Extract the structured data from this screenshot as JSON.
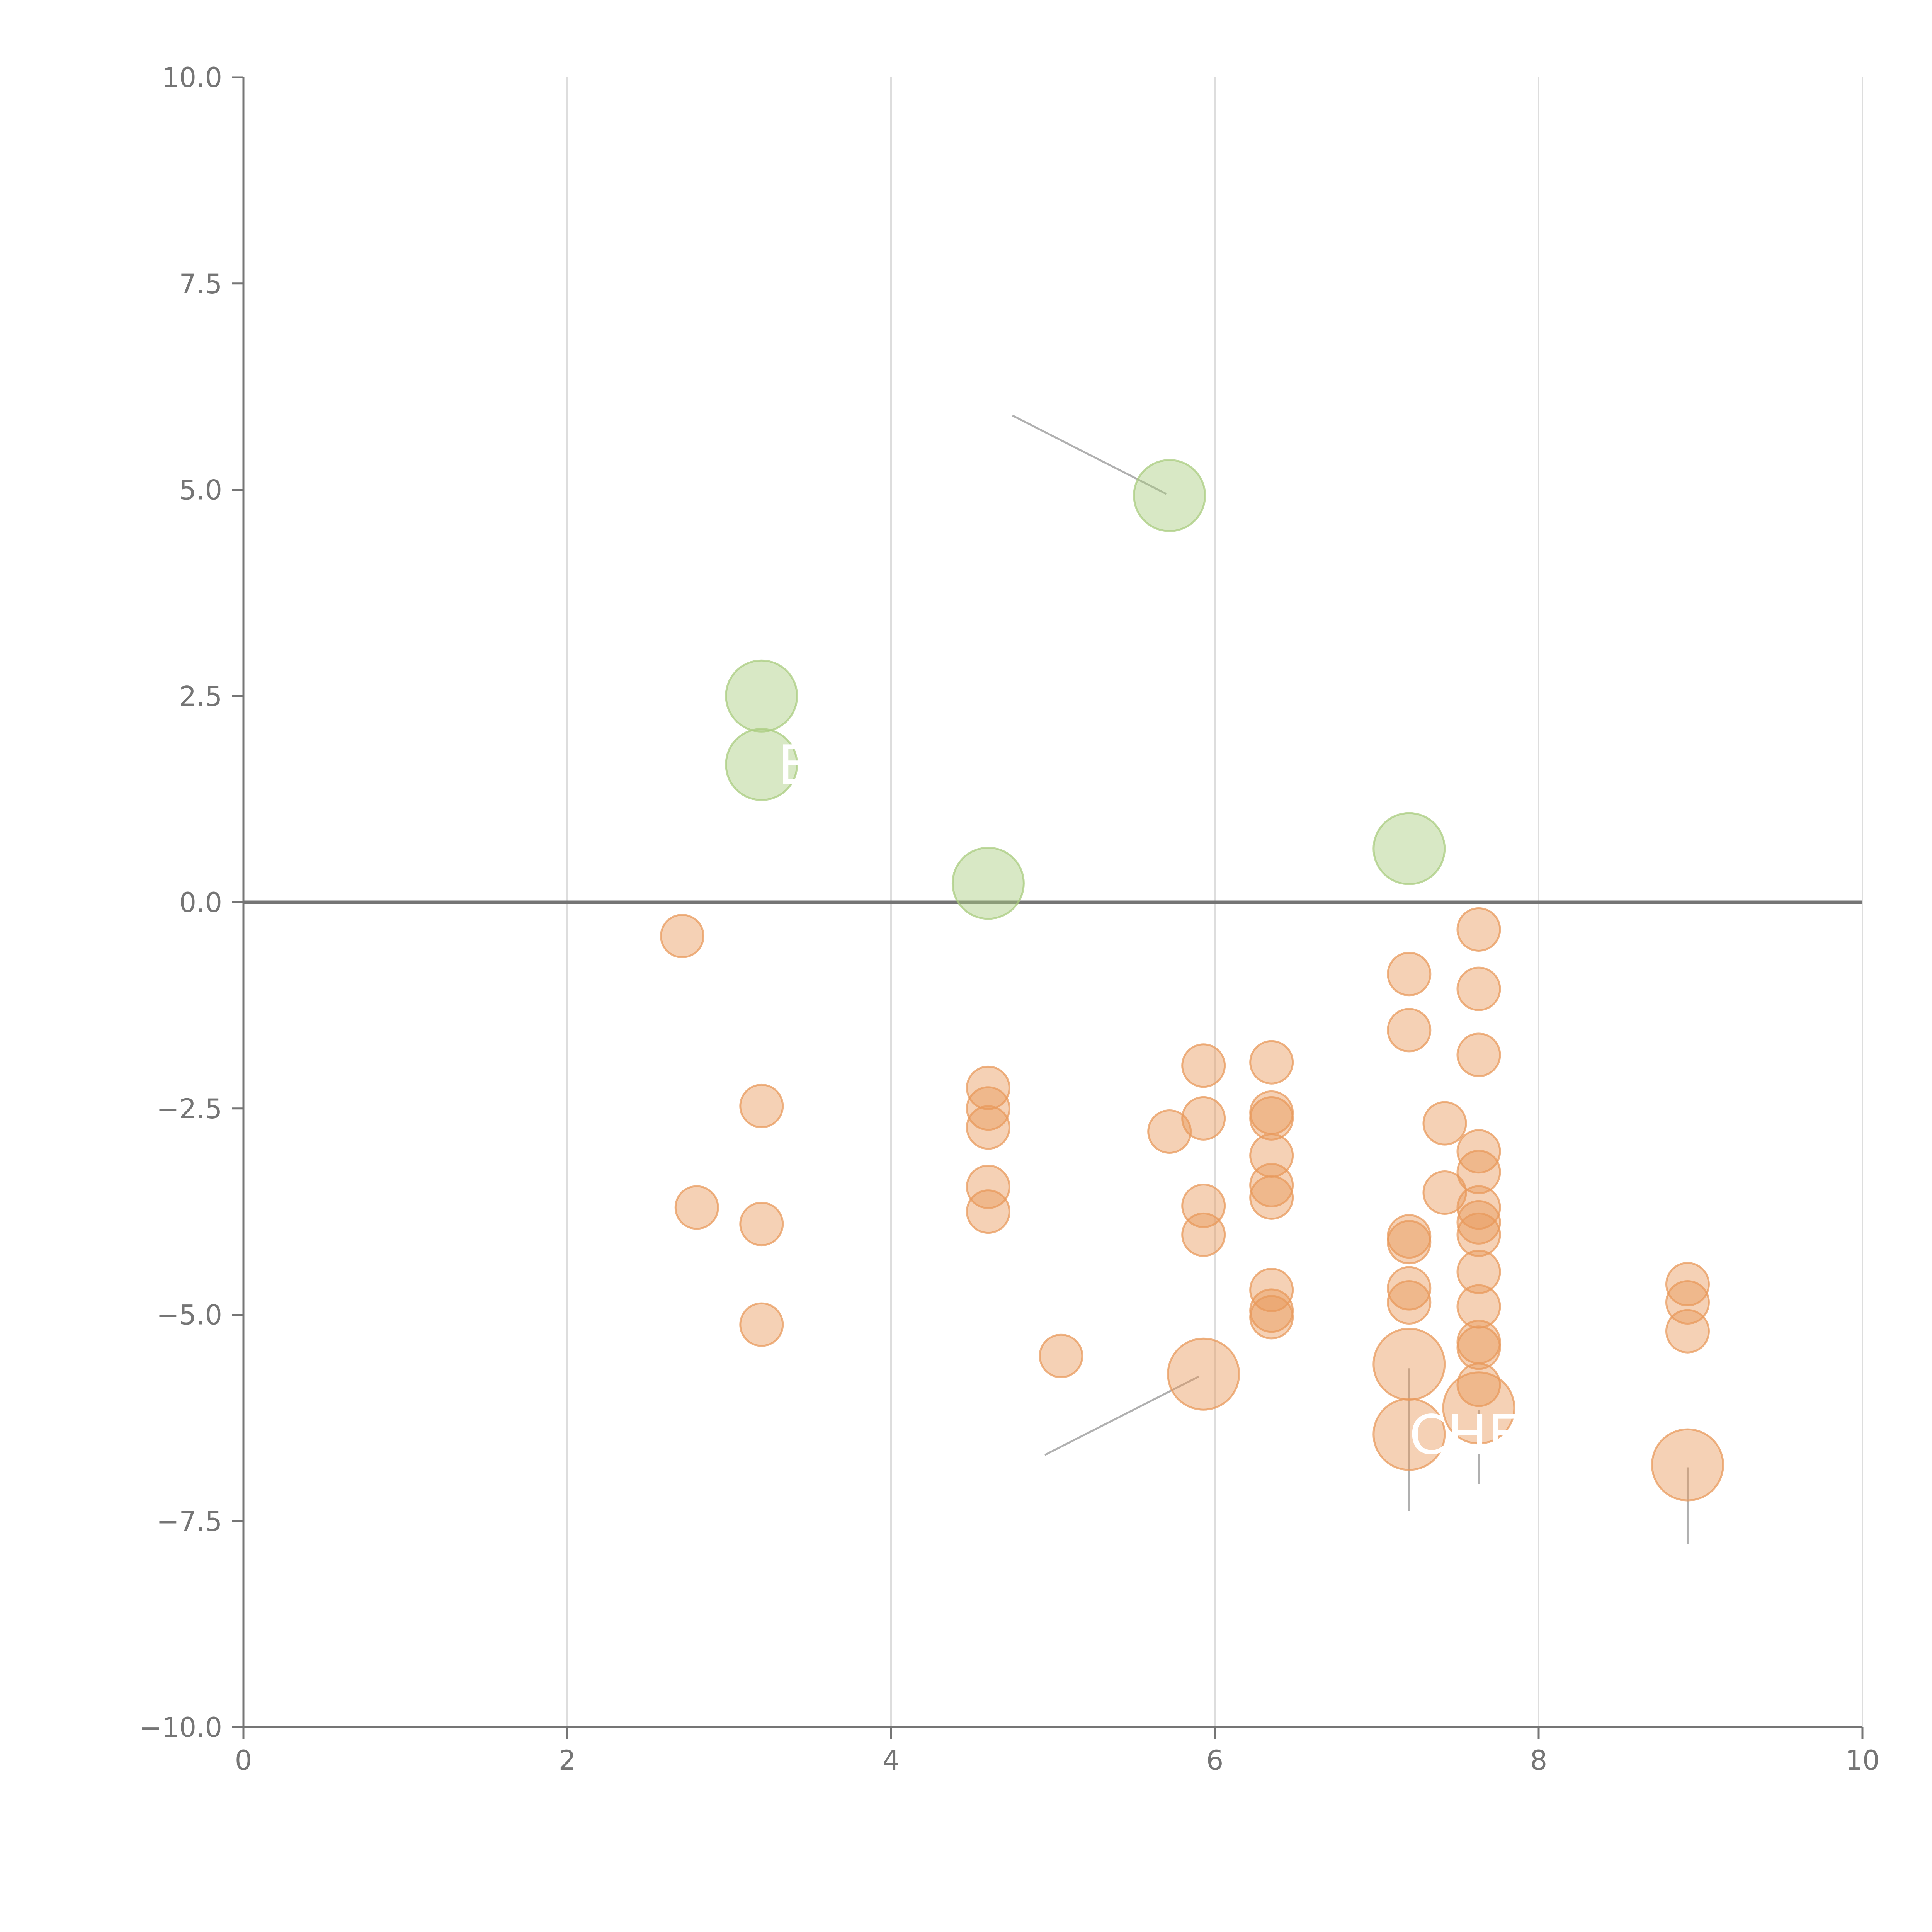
{
  "chart_data": {
    "type": "scatter",
    "title": "",
    "xlabel": "",
    "ylabel": "",
    "xlim": [
      0,
      10
    ],
    "ylim": [
      -10,
      10
    ],
    "x_ticks": [
      "0",
      "2",
      "4",
      "6",
      "8",
      "10"
    ],
    "y_ticks": [
      "10.0",
      "7.5",
      "5.0",
      "2.5",
      "0.0",
      "−2.5",
      "−5.0",
      "−7.5",
      "−10.0"
    ],
    "grid": "vertical",
    "zero_line": 0,
    "colors": {
      "positive": "#a9cc7f",
      "negative": "#e89a5c",
      "axis": "#757575",
      "grid": "#dddddd",
      "leader": "#b0b0b0"
    },
    "series": [
      {
        "color_key": "positive",
        "points": [
          {
            "x": 3.2,
            "y": 2.5,
            "size": "large"
          },
          {
            "x": 3.2,
            "y": 1.67,
            "size": "large"
          },
          {
            "x": 4.6,
            "y": 0.23,
            "size": "large"
          },
          {
            "x": 5.72,
            "y": 4.93,
            "size": "large"
          },
          {
            "x": 7.2,
            "y": 0.65,
            "size": "large"
          }
        ]
      },
      {
        "color_key": "negative",
        "points": [
          {
            "x": 2.71,
            "y": -0.41,
            "size": "small"
          },
          {
            "x": 2.8,
            "y": -3.7,
            "size": "small"
          },
          {
            "x": 3.2,
            "y": -2.47,
            "size": "small"
          },
          {
            "x": 3.2,
            "y": -3.9,
            "size": "small"
          },
          {
            "x": 3.2,
            "y": -5.12,
            "size": "small"
          },
          {
            "x": 4.6,
            "y": -2.25,
            "size": "small"
          },
          {
            "x": 4.6,
            "y": -2.5,
            "size": "small"
          },
          {
            "x": 4.6,
            "y": -2.73,
            "size": "small"
          },
          {
            "x": 4.6,
            "y": -3.45,
            "size": "small"
          },
          {
            "x": 4.6,
            "y": -3.75,
            "size": "small"
          },
          {
            "x": 5.05,
            "y": -5.5,
            "size": "small"
          },
          {
            "x": 5.72,
            "y": -2.78,
            "size": "small"
          },
          {
            "x": 5.93,
            "y": -1.98,
            "size": "small"
          },
          {
            "x": 5.93,
            "y": -2.62,
            "size": "small"
          },
          {
            "x": 5.93,
            "y": -3.68,
            "size": "small"
          },
          {
            "x": 5.93,
            "y": -4.03,
            "size": "small"
          },
          {
            "x": 5.93,
            "y": -5.72,
            "size": "large"
          },
          {
            "x": 6.35,
            "y": -1.94,
            "size": "small"
          },
          {
            "x": 6.35,
            "y": -2.55,
            "size": "small"
          },
          {
            "x": 6.35,
            "y": -2.62,
            "size": "small"
          },
          {
            "x": 6.35,
            "y": -3.07,
            "size": "small"
          },
          {
            "x": 6.35,
            "y": -3.43,
            "size": "small"
          },
          {
            "x": 6.35,
            "y": -3.58,
            "size": "small"
          },
          {
            "x": 6.35,
            "y": -4.7,
            "size": "small"
          },
          {
            "x": 6.35,
            "y": -4.95,
            "size": "small"
          },
          {
            "x": 6.35,
            "y": -5.03,
            "size": "small"
          },
          {
            "x": 7.2,
            "y": -0.87,
            "size": "small"
          },
          {
            "x": 7.2,
            "y": -1.55,
            "size": "small"
          },
          {
            "x": 7.2,
            "y": -4.05,
            "size": "small"
          },
          {
            "x": 7.2,
            "y": -4.12,
            "size": "small"
          },
          {
            "x": 7.2,
            "y": -4.68,
            "size": "small"
          },
          {
            "x": 7.2,
            "y": -4.85,
            "size": "small"
          },
          {
            "x": 7.2,
            "y": -5.6,
            "size": "large"
          },
          {
            "x": 7.2,
            "y": -6.45,
            "size": "large"
          },
          {
            "x": 7.42,
            "y": -2.68,
            "size": "small"
          },
          {
            "x": 7.42,
            "y": -3.52,
            "size": "small"
          },
          {
            "x": 7.63,
            "y": -0.33,
            "size": "small"
          },
          {
            "x": 7.63,
            "y": -1.05,
            "size": "small"
          },
          {
            "x": 7.63,
            "y": -1.85,
            "size": "small"
          },
          {
            "x": 7.63,
            "y": -3.02,
            "size": "small"
          },
          {
            "x": 7.63,
            "y": -3.27,
            "size": "small"
          },
          {
            "x": 7.63,
            "y": -3.7,
            "size": "small"
          },
          {
            "x": 7.63,
            "y": -3.88,
            "size": "small"
          },
          {
            "x": 7.63,
            "y": -4.03,
            "size": "small"
          },
          {
            "x": 7.63,
            "y": -4.48,
            "size": "small"
          },
          {
            "x": 7.63,
            "y": -4.9,
            "size": "small"
          },
          {
            "x": 7.63,
            "y": -5.33,
            "size": "small"
          },
          {
            "x": 7.63,
            "y": -5.4,
            "size": "small"
          },
          {
            "x": 7.63,
            "y": -5.85,
            "size": "small"
          },
          {
            "x": 7.63,
            "y": -6.13,
            "size": "large"
          },
          {
            "x": 8.92,
            "y": -4.63,
            "size": "small"
          },
          {
            "x": 8.92,
            "y": -4.85,
            "size": "small"
          },
          {
            "x": 8.92,
            "y": -5.2,
            "size": "small"
          },
          {
            "x": 8.92,
            "y": -6.82,
            "size": "large"
          }
        ]
      }
    ],
    "annotations": [
      {
        "text": "E",
        "x": 3.2,
        "y": 1.67,
        "label_x": 3.3,
        "label_y": 1.67,
        "show_leader": false
      },
      {
        "text": "CHE",
        "x": 7.2,
        "y": -6.45,
        "label_x": 7.2,
        "label_y": -6.45,
        "show_leader": false
      }
    ],
    "leader_lines": [
      {
        "x1": 5.7,
        "y1": 4.95,
        "x2": 4.75,
        "y2": 5.9
      },
      {
        "x1": 5.9,
        "y1": -5.75,
        "x2": 4.95,
        "y2": -6.7
      },
      {
        "x1": 7.2,
        "y1": -5.65,
        "x2": 7.2,
        "y2": -7.38
      },
      {
        "x1": 7.63,
        "y1": -6.15,
        "x2": 7.63,
        "y2": -7.05
      },
      {
        "x1": 8.92,
        "y1": -6.85,
        "x2": 8.92,
        "y2": -7.78
      }
    ]
  }
}
